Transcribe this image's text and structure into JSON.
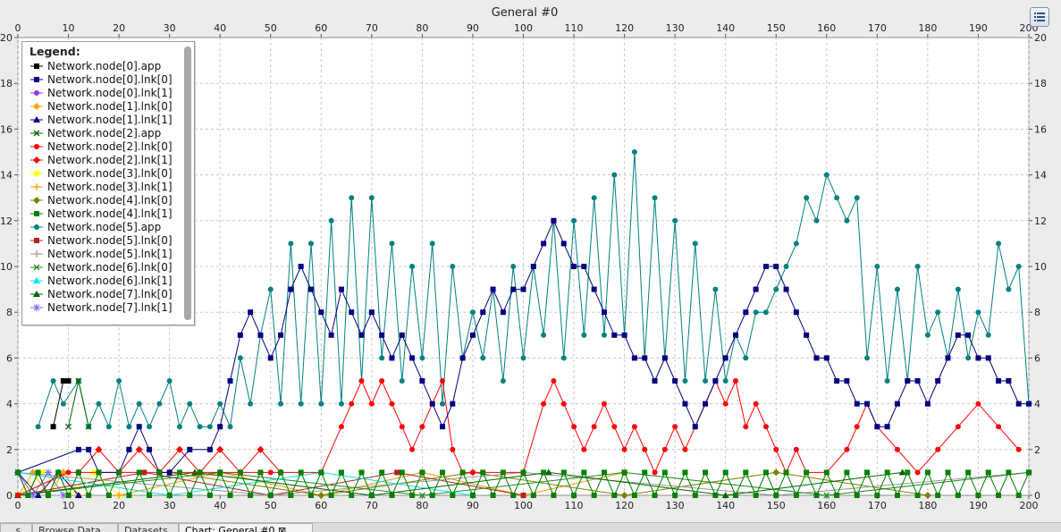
{
  "window": {
    "title": "General  #0"
  },
  "tabs": [
    {
      "label": "...s"
    },
    {
      "label": "Browse Data"
    },
    {
      "label": "Datasets"
    },
    {
      "label": "Chart: General #0 ⊠"
    }
  ],
  "colors": {
    "plot_background": "#ffffff",
    "grid": "#c8c8c8",
    "frame": "#8c8c8c"
  },
  "chart_data": {
    "type": "line",
    "title": "General  #0",
    "xlabel": "",
    "ylabel": "",
    "xlim": [
      0,
      200
    ],
    "ylim": [
      0,
      20
    ],
    "x_ticks": [
      0,
      10,
      20,
      30,
      40,
      50,
      60,
      70,
      80,
      90,
      100,
      110,
      120,
      130,
      140,
      150,
      160,
      170,
      180,
      190,
      200
    ],
    "y_ticks": [
      0,
      2,
      4,
      6,
      8,
      10,
      12,
      14,
      16,
      18,
      20
    ],
    "grid": true,
    "legend_title": "Legend:",
    "legend_position": "top-left",
    "series": [
      {
        "name": "Network.node[0].app",
        "color": "#000000",
        "marker": "square",
        "x": [
          7,
          9,
          10
        ],
        "y": [
          3,
          5,
          5
        ]
      },
      {
        "name": "Network.node[0].lnk[0]",
        "color": "#000080",
        "marker": "square",
        "x": [
          0,
          12,
          14,
          16,
          20,
          22,
          24,
          26,
          28,
          30,
          34,
          38,
          40,
          42,
          44,
          46,
          48,
          50,
          52,
          54,
          56,
          58,
          60,
          62,
          64,
          66,
          68,
          70,
          72,
          74,
          76,
          78,
          80,
          82,
          84,
          86,
          88,
          90,
          92,
          94,
          96,
          98,
          100,
          102,
          104,
          106,
          108,
          110,
          112,
          114,
          116,
          118,
          120,
          122,
          124,
          126,
          128,
          130,
          132,
          134,
          136,
          138,
          140,
          142,
          144,
          146,
          148,
          150,
          152,
          154,
          156,
          158,
          160,
          162,
          164,
          166,
          168,
          170,
          172,
          174,
          176,
          178,
          180,
          182,
          184,
          186,
          188,
          190,
          192,
          194,
          196,
          198,
          200
        ],
        "y": [
          1,
          2,
          2,
          1,
          1,
          2,
          3,
          2,
          1,
          1,
          2,
          2,
          3,
          5,
          7,
          8,
          7,
          6,
          7,
          9,
          10,
          9,
          8,
          7,
          9,
          8,
          7,
          8,
          7,
          6,
          7,
          6,
          5,
          4,
          3,
          4,
          6,
          7,
          8,
          9,
          8,
          9,
          9,
          10,
          11,
          12,
          11,
          10,
          10,
          9,
          8,
          7,
          7,
          6,
          6,
          5,
          6,
          5,
          4,
          3,
          4,
          5,
          6,
          7,
          8,
          9,
          10,
          10,
          9,
          8,
          7,
          6,
          6,
          5,
          5,
          4,
          4,
          3,
          3,
          4,
          5,
          5,
          4,
          5,
          6,
          7,
          7,
          6,
          6,
          5,
          5,
          4,
          4
        ]
      },
      {
        "name": "Network.node[0].lnk[1]",
        "color": "#9933ff",
        "marker": "circle",
        "x": [
          0,
          2,
          4,
          6,
          8,
          10
        ],
        "y": [
          1,
          0,
          1,
          0,
          1,
          0
        ]
      },
      {
        "name": "Network.node[1].lnk[0]",
        "color": "#ffa500",
        "marker": "diamond",
        "x": [
          0,
          3,
          6,
          9,
          12
        ],
        "y": [
          0,
          1,
          0,
          1,
          0
        ]
      },
      {
        "name": "Network.node[1].lnk[1]",
        "color": "#000080",
        "marker": "triangle",
        "x": [
          0,
          4,
          8,
          12
        ],
        "y": [
          1,
          0,
          1,
          0
        ]
      },
      {
        "name": "Network.node[2].app",
        "color": "#006400",
        "marker": "cross",
        "x": [
          10,
          12,
          14
        ],
        "y": [
          3,
          5,
          3
        ]
      },
      {
        "name": "Network.node[2].lnk[0]",
        "color": "#ff0000",
        "marker": "circle",
        "x": [
          0,
          10,
          20,
          30,
          40,
          50,
          60,
          64,
          66,
          68,
          70,
          72,
          74,
          76,
          78,
          80,
          82,
          84,
          86,
          88,
          90,
          100,
          104,
          106,
          108,
          110,
          112,
          114,
          116,
          118,
          120,
          122,
          124,
          126,
          128,
          130,
          132,
          134,
          136,
          138,
          140,
          142,
          144,
          146,
          148,
          150,
          152,
          154,
          156,
          160,
          164,
          166,
          168,
          170,
          174,
          178,
          182,
          186,
          190,
          194,
          198
        ],
        "y": [
          0,
          1,
          1,
          1,
          1,
          1,
          1,
          3,
          4,
          5,
          4,
          5,
          4,
          3,
          2,
          3,
          4,
          5,
          2,
          1,
          1,
          1,
          4,
          5,
          4,
          3,
          2,
          3,
          4,
          3,
          2,
          3,
          2,
          1,
          2,
          3,
          2,
          3,
          4,
          5,
          4,
          5,
          3,
          4,
          3,
          2,
          1,
          2,
          1,
          1,
          2,
          3,
          4,
          3,
          2,
          1,
          2,
          3,
          4,
          3,
          2
        ]
      },
      {
        "name": "Network.node[2].lnk[1]",
        "color": "#ff0000",
        "marker": "diamond",
        "x": [
          12,
          16,
          20,
          24,
          28,
          32,
          36,
          40,
          44,
          48,
          52
        ],
        "y": [
          1,
          2,
          1,
          2,
          1,
          2,
          1,
          2,
          1,
          2,
          1
        ]
      },
      {
        "name": "Network.node[3].lnk[0]",
        "color": "#ffff00",
        "marker": "diamond",
        "x": [
          0,
          5,
          10,
          15,
          20
        ],
        "y": [
          0,
          1,
          0,
          1,
          0
        ]
      },
      {
        "name": "Network.node[3].lnk[1]",
        "color": "#ff9900",
        "marker": "plus",
        "x": [
          20,
          40,
          60,
          80,
          100,
          120
        ],
        "y": [
          0,
          1,
          0,
          1,
          0,
          1
        ]
      },
      {
        "name": "Network.node[4].lnk[0]",
        "color": "#808000",
        "marker": "diamond",
        "x": [
          30,
          60,
          90,
          120,
          150,
          180
        ],
        "y": [
          1,
          0,
          1,
          0,
          1,
          0
        ]
      },
      {
        "name": "Network.node[4].lnk[1]",
        "color": "#008000",
        "marker": "square",
        "x": [
          0,
          2,
          4,
          6,
          8,
          10,
          12,
          14,
          16,
          18,
          20,
          22,
          24,
          26,
          28,
          30,
          32,
          34,
          36,
          38,
          40,
          42,
          44,
          46,
          48,
          50,
          52,
          54,
          56,
          58,
          60,
          62,
          64,
          66,
          68,
          70,
          72,
          74,
          76,
          78,
          80,
          82,
          84,
          86,
          88,
          90,
          92,
          94,
          96,
          98,
          100,
          102,
          104,
          106,
          108,
          110,
          112,
          114,
          116,
          118,
          120,
          122,
          124,
          126,
          128,
          130,
          132,
          134,
          136,
          138,
          140,
          142,
          144,
          146,
          148,
          150,
          152,
          154,
          156,
          158,
          160,
          162,
          164,
          166,
          168,
          170,
          172,
          174,
          176,
          178,
          180,
          182,
          184,
          186,
          188,
          190,
          192,
          194,
          196,
          198,
          200
        ],
        "y": [
          1,
          0,
          1,
          0,
          1,
          0,
          1,
          0,
          1,
          0,
          1,
          0,
          1,
          0,
          1,
          0,
          1,
          0,
          1,
          0,
          1,
          0,
          1,
          0,
          1,
          0,
          1,
          0,
          1,
          0,
          1,
          0,
          1,
          0,
          1,
          0,
          1,
          0,
          1,
          0,
          1,
          0,
          1,
          0,
          1,
          0,
          1,
          0,
          1,
          0,
          1,
          0,
          1,
          0,
          1,
          0,
          1,
          0,
          1,
          0,
          1,
          0,
          1,
          0,
          1,
          0,
          1,
          0,
          1,
          0,
          1,
          0,
          1,
          0,
          1,
          0,
          1,
          0,
          1,
          0,
          1,
          0,
          1,
          0,
          1,
          0,
          1,
          0,
          1,
          0,
          1,
          0,
          1,
          0,
          1,
          0,
          1,
          0,
          1,
          0,
          1
        ]
      },
      {
        "name": "Network.node[5].app",
        "color": "#008080",
        "marker": "circle",
        "x": [
          4,
          7,
          9,
          12,
          14,
          16,
          18,
          20,
          22,
          24,
          26,
          28,
          30,
          32,
          34,
          36,
          38,
          40,
          42,
          44,
          46,
          48,
          50,
          52,
          54,
          56,
          58,
          60,
          62,
          64,
          66,
          68,
          70,
          72,
          74,
          76,
          78,
          80,
          82,
          84,
          86,
          88,
          90,
          92,
          94,
          96,
          98,
          100,
          102,
          104,
          106,
          108,
          110,
          112,
          114,
          116,
          118,
          120,
          122,
          124,
          126,
          128,
          130,
          132,
          134,
          136,
          138,
          140,
          142,
          144,
          146,
          148,
          150,
          152,
          154,
          156,
          158,
          160,
          162,
          164,
          166,
          168,
          170,
          172,
          174,
          176,
          178,
          180,
          182,
          184,
          186,
          188,
          190,
          192,
          194,
          196,
          198,
          200
        ],
        "y": [
          3,
          5,
          4,
          5,
          3,
          4,
          3,
          5,
          3,
          4,
          3,
          4,
          5,
          3,
          4,
          3,
          3,
          4,
          3,
          6,
          4,
          7,
          9,
          4,
          11,
          4,
          11,
          4,
          12,
          4,
          13,
          5,
          13,
          6,
          11,
          5,
          10,
          6,
          11,
          4,
          10,
          6,
          8,
          6,
          9,
          5,
          10,
          6,
          10,
          7,
          12,
          6,
          12,
          7,
          13,
          7,
          14,
          7,
          15,
          6,
          13,
          6,
          12,
          5,
          11,
          5,
          9,
          5,
          7,
          6,
          8,
          8,
          9,
          10,
          11,
          13,
          12,
          14,
          13,
          12,
          13,
          6,
          10,
          5,
          9,
          5,
          10,
          7,
          8,
          6,
          9,
          6,
          8,
          7,
          11,
          9,
          10,
          4
        ]
      },
      {
        "name": "Network.node[5].lnk[0]",
        "color": "#b22222",
        "marker": "square",
        "x": [
          0,
          25,
          50,
          75,
          100
        ],
        "y": [
          0,
          1,
          0,
          1,
          0
        ]
      },
      {
        "name": "Network.node[5].lnk[1]",
        "color": "#999999",
        "marker": "plus",
        "x": [
          0,
          50,
          100,
          150,
          200
        ],
        "y": [
          1,
          0,
          1,
          0,
          1
        ]
      },
      {
        "name": "Network.node[6].lnk[0]",
        "color": "#228b22",
        "marker": "cross",
        "x": [
          0,
          40,
          80,
          120,
          160,
          200
        ],
        "y": [
          0,
          1,
          0,
          1,
          0,
          1
        ]
      },
      {
        "name": "Network.node[6].lnk[1]",
        "color": "#00e5ee",
        "marker": "triangle",
        "x": [
          0,
          30,
          60,
          90
        ],
        "y": [
          1,
          0,
          1,
          0
        ]
      },
      {
        "name": "Network.node[7].lnk[0]",
        "color": "#006400",
        "marker": "triangle",
        "x": [
          0,
          35,
          70,
          105,
          140,
          175
        ],
        "y": [
          0,
          1,
          0,
          1,
          0,
          1
        ]
      },
      {
        "name": "Network.node[7].lnk[1]",
        "color": "#7b68ee",
        "marker": "star",
        "x": [
          0,
          3,
          6,
          9
        ],
        "y": [
          1,
          0,
          1,
          0
        ]
      }
    ]
  }
}
